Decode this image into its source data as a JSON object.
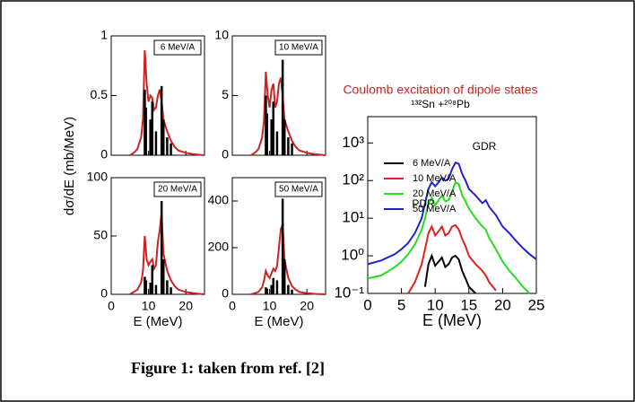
{
  "chart_data": [
    {
      "type": "line",
      "y_label": "dσ/dE  (mb/MeV)",
      "label": "6 MeV/A",
      "xlim": [
        0,
        25
      ],
      "ylim": [
        0,
        1
      ],
      "yticks": [
        0,
        0.5,
        1
      ],
      "series": [
        {
          "color": "#cc2222",
          "x": [
            5,
            6,
            7,
            8,
            8.5,
            9,
            9.5,
            10,
            10.5,
            11,
            11.5,
            12,
            12.5,
            13,
            13.5,
            14,
            15,
            16,
            17,
            18,
            20,
            22,
            25
          ],
          "values": [
            0,
            0.02,
            0.05,
            0.15,
            0.3,
            0.88,
            0.6,
            0.45,
            0.5,
            0.48,
            0.38,
            0.4,
            0.5,
            0.55,
            0.45,
            0.3,
            0.2,
            0.12,
            0.07,
            0.04,
            0.02,
            0.01,
            0
          ]
        },
        {
          "color": "#000000",
          "style": "stem",
          "x": [
            9,
            9.3,
            10.5,
            11,
            12,
            13.5,
            14,
            15,
            16
          ],
          "values": [
            0.55,
            0.4,
            0.3,
            0.45,
            0.2,
            0.58,
            0.3,
            0.15,
            0.1
          ]
        }
      ]
    },
    {
      "type": "line",
      "label": "10 MeV/A",
      "xlim": [
        0,
        25
      ],
      "ylim": [
        0,
        10
      ],
      "yticks": [
        0,
        5,
        10
      ],
      "series": [
        {
          "color": "#cc2222",
          "x": [
            5,
            6,
            7,
            8,
            8.5,
            9,
            9.5,
            10,
            10.5,
            11,
            11.5,
            12,
            12.5,
            13,
            13.5,
            14,
            15,
            16,
            17,
            18,
            20,
            22,
            25
          ],
          "values": [
            0,
            0.2,
            0.5,
            1.5,
            3,
            7,
            5,
            4,
            5.5,
            6,
            4,
            4.5,
            6,
            6.5,
            5,
            3,
            2,
            1.2,
            0.7,
            0.4,
            0.2,
            0.1,
            0
          ]
        },
        {
          "color": "#000000",
          "style": "stem",
          "x": [
            9,
            9.3,
            10.5,
            11,
            12,
            13.5,
            14,
            15,
            16
          ],
          "values": [
            5,
            3.5,
            3,
            4.5,
            2,
            8,
            3,
            1.5,
            1
          ]
        }
      ]
    },
    {
      "type": "line",
      "label": "20 MeV/A",
      "x_label": "E (MeV)",
      "xlim": [
        0,
        25
      ],
      "ylim": [
        0,
        100
      ],
      "xticks": [
        0,
        10,
        20
      ],
      "yticks": [
        0,
        50,
        100
      ],
      "series": [
        {
          "color": "#cc2222",
          "x": [
            5,
            6,
            7,
            8,
            8.5,
            9,
            9.5,
            10,
            10.5,
            11,
            11.5,
            12,
            12.5,
            13,
            13.5,
            14,
            15,
            16,
            17,
            18,
            20,
            22,
            25
          ],
          "values": [
            0,
            2,
            4,
            10,
            20,
            50,
            30,
            25,
            28,
            30,
            22,
            25,
            45,
            55,
            70,
            35,
            20,
            12,
            7,
            4,
            2,
            1,
            0
          ]
        },
        {
          "color": "#000000",
          "style": "stem",
          "x": [
            9,
            9.3,
            10.5,
            11,
            12,
            13.5,
            14,
            15,
            16
          ],
          "values": [
            15,
            12,
            10,
            25,
            8,
            80,
            30,
            12,
            6
          ]
        }
      ]
    },
    {
      "type": "line",
      "label": "50 MeV/A",
      "x_label": "E (MeV)",
      "xlim": [
        0,
        25
      ],
      "ylim": [
        0,
        500
      ],
      "xticks": [
        0,
        10,
        20
      ],
      "yticks": [
        0,
        200,
        400
      ],
      "series": [
        {
          "color": "#cc2222",
          "x": [
            5,
            6,
            7,
            8,
            8.5,
            9,
            9.5,
            10,
            10.5,
            11,
            11.5,
            12,
            12.5,
            13,
            13.5,
            14,
            15,
            16,
            17,
            18,
            20,
            22,
            25
          ],
          "values": [
            0,
            5,
            10,
            30,
            60,
            100,
            80,
            70,
            90,
            110,
            100,
            120,
            200,
            280,
            300,
            150,
            70,
            35,
            20,
            10,
            5,
            2,
            0
          ]
        },
        {
          "color": "#000000",
          "style": "stem",
          "x": [
            9,
            9.3,
            10.5,
            11,
            12,
            13.5,
            14,
            15,
            16
          ],
          "values": [
            30,
            25,
            40,
            70,
            60,
            410,
            150,
            40,
            20
          ]
        }
      ]
    },
    {
      "type": "line",
      "title": "Coulomb excitation of dipole states",
      "subtitle": "¹³²Sn +²⁰⁸Pb",
      "x_label": "E (MeV)",
      "log_y": true,
      "legend": "upper-left",
      "annotations": [
        "PDR",
        "GDR"
      ],
      "xlim": [
        0,
        25
      ],
      "ylim": [
        0.1,
        5000
      ],
      "xticks": [
        0,
        5,
        10,
        15,
        20,
        25
      ],
      "yticks": [
        {
          "value": 0.1,
          "label": "10⁻¹"
        },
        {
          "value": 1,
          "label": "10⁰"
        },
        {
          "value": 10,
          "label": "10¹"
        },
        {
          "value": 100,
          "label": "10²"
        },
        {
          "value": 1000,
          "label": "10³"
        }
      ],
      "x": [
        0,
        2,
        4,
        5,
        6,
        7,
        8,
        8.5,
        9,
        9.5,
        10,
        10.5,
        11,
        11.5,
        12,
        12.5,
        13,
        13.5,
        14,
        14.5,
        15,
        16,
        17,
        17.5,
        18,
        19,
        20,
        21,
        22,
        23,
        24,
        25
      ],
      "series": [
        {
          "name": "6 MeV/A",
          "color": "#000000",
          "values": [
            null,
            null,
            null,
            null,
            null,
            null,
            null,
            0.15,
            0.6,
            1,
            0.55,
            0.7,
            0.9,
            0.5,
            0.6,
            0.9,
            1,
            0.8,
            0.4,
            0.25,
            0.15,
            0.1,
            null,
            null,
            null,
            null,
            null,
            null,
            null,
            null,
            null,
            null
          ]
        },
        {
          "name": "10 MeV/A",
          "color": "#dd2222",
          "values": [
            null,
            null,
            null,
            null,
            0.1,
            0.2,
            0.6,
            1.5,
            4,
            6,
            3.5,
            4.5,
            6,
            3.5,
            4,
            6,
            6.5,
            5,
            2.8,
            1.8,
            1,
            0.6,
            0.4,
            0.3,
            0.2,
            0.12,
            null,
            null,
            null,
            null,
            null,
            null
          ]
        },
        {
          "name": "20 MeV/A",
          "color": "#22dd22",
          "values": [
            0.25,
            0.3,
            0.5,
            0.7,
            1.1,
            2,
            5,
            10,
            25,
            35,
            22,
            30,
            40,
            28,
            30,
            50,
            90,
            80,
            40,
            28,
            18,
            10,
            6,
            5,
            3,
            1.5,
            0.7,
            0.4,
            0.25,
            0.15,
            0.1,
            null
          ]
        },
        {
          "name": "50 MeV/A",
          "color": "#2222cc",
          "values": [
            0.6,
            0.75,
            1.1,
            1.5,
            2.2,
            4,
            10,
            25,
            60,
            90,
            70,
            90,
            120,
            100,
            110,
            200,
            300,
            280,
            150,
            100,
            60,
            40,
            25,
            30,
            20,
            12,
            6,
            4,
            2.5,
            1.6,
            1.1,
            0.8
          ]
        }
      ]
    }
  ],
  "caption": "Figure 1: taken from ref. [2]"
}
